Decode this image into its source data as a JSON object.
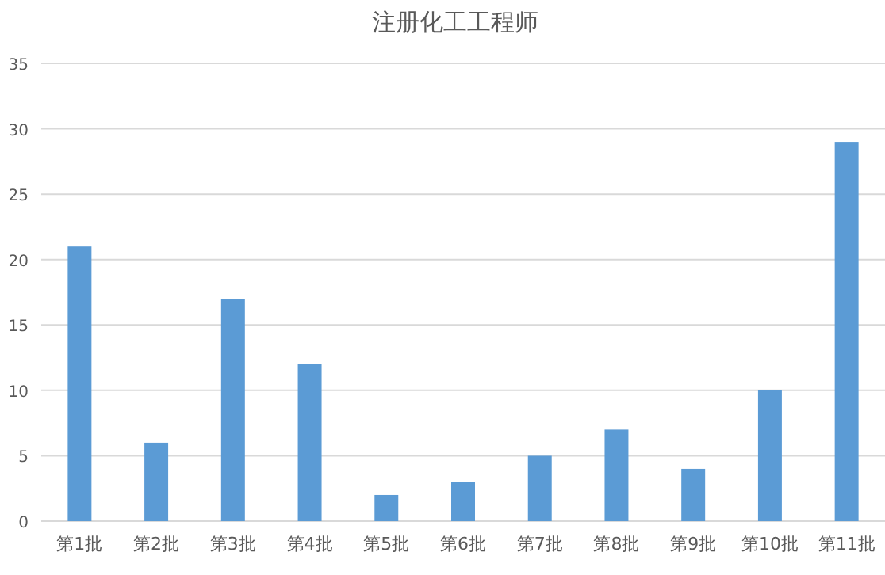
{
  "chart_data": {
    "type": "bar",
    "title": "注册化工工程师",
    "categories": [
      "第1批",
      "第2批",
      "第3批",
      "第4批",
      "第5批",
      "第6批",
      "第7批",
      "第8批",
      "第9批",
      "第10批",
      "第11批"
    ],
    "values": [
      21,
      6,
      17,
      12,
      2,
      3,
      5,
      7,
      4,
      10,
      29
    ],
    "color": "#5b9bd5",
    "ylim": [
      0,
      35
    ],
    "yticks": [
      0,
      5,
      10,
      15,
      20,
      25,
      30,
      35
    ],
    "grid": "y"
  }
}
